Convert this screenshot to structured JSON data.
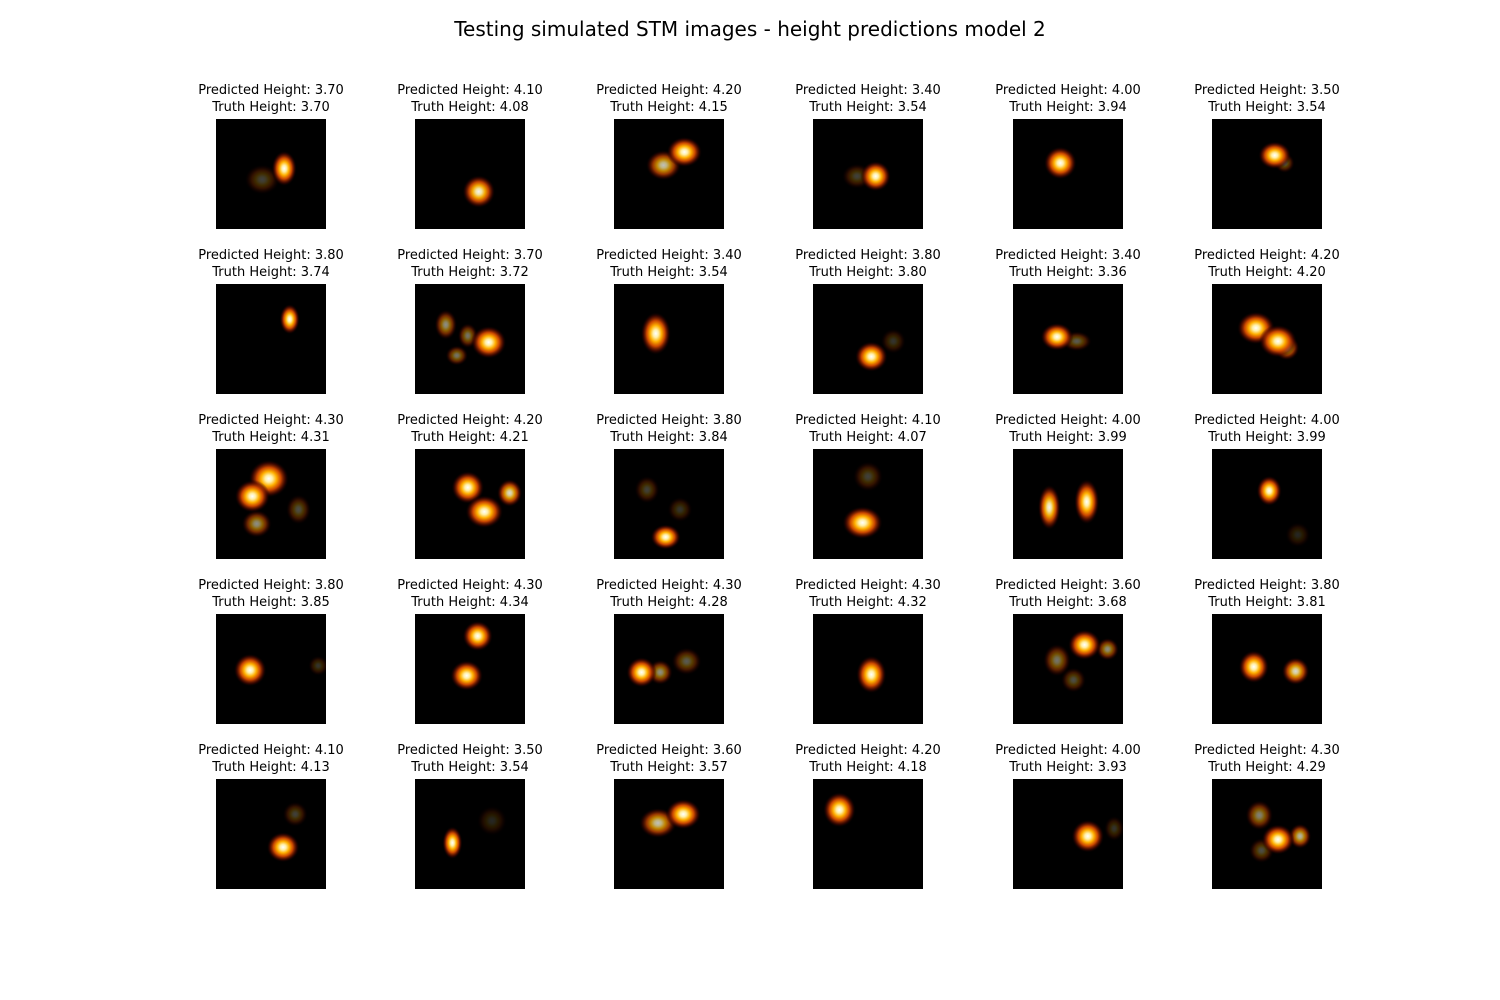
{
  "figure": {
    "title": "Testing simulated STM images - height predictions model 2",
    "pred_prefix": "Predicted Height: ",
    "truth_prefix": "Truth Height: ",
    "colormap": "afmhot",
    "background_color": "#000000"
  },
  "panels": [
    {
      "pred": "3.70",
      "truth": "3.70",
      "blobs": [
        [
          0.62,
          0.45,
          0.1,
          0.14,
          1.0
        ],
        [
          0.42,
          0.55,
          0.14,
          0.12,
          0.25
        ]
      ]
    },
    {
      "pred": "4.10",
      "truth": "4.08",
      "blobs": [
        [
          0.58,
          0.66,
          0.13,
          0.13,
          0.95
        ]
      ]
    },
    {
      "pred": "4.20",
      "truth": "4.15",
      "blobs": [
        [
          0.64,
          0.3,
          0.14,
          0.12,
          1.0
        ],
        [
          0.45,
          0.42,
          0.14,
          0.12,
          0.75
        ]
      ]
    },
    {
      "pred": "3.40",
      "truth": "3.54",
      "blobs": [
        [
          0.57,
          0.52,
          0.12,
          0.12,
          1.0
        ],
        [
          0.4,
          0.52,
          0.12,
          0.1,
          0.25
        ]
      ]
    },
    {
      "pred": "4.00",
      "truth": "3.94",
      "blobs": [
        [
          0.43,
          0.4,
          0.13,
          0.13,
          1.0
        ]
      ]
    },
    {
      "pred": "3.50",
      "truth": "3.54",
      "blobs": [
        [
          0.57,
          0.33,
          0.13,
          0.11,
          1.0
        ],
        [
          0.66,
          0.4,
          0.08,
          0.08,
          0.35
        ]
      ]
    },
    {
      "pred": "3.80",
      "truth": "3.74",
      "blobs": [
        [
          0.67,
          0.32,
          0.08,
          0.12,
          1.0
        ]
      ]
    },
    {
      "pred": "3.70",
      "truth": "3.72",
      "blobs": [
        [
          0.67,
          0.53,
          0.14,
          0.13,
          1.0
        ],
        [
          0.28,
          0.37,
          0.09,
          0.12,
          0.55
        ],
        [
          0.38,
          0.65,
          0.09,
          0.08,
          0.45
        ],
        [
          0.48,
          0.47,
          0.08,
          0.1,
          0.45
        ]
      ]
    },
    {
      "pred": "3.40",
      "truth": "3.54",
      "blobs": [
        [
          0.38,
          0.45,
          0.12,
          0.17,
          1.0
        ]
      ]
    },
    {
      "pred": "3.80",
      "truth": "3.80",
      "blobs": [
        [
          0.53,
          0.66,
          0.13,
          0.12,
          1.0
        ],
        [
          0.73,
          0.52,
          0.1,
          0.1,
          0.2
        ]
      ]
    },
    {
      "pred": "3.40",
      "truth": "3.36",
      "blobs": [
        [
          0.4,
          0.48,
          0.13,
          0.11,
          1.0
        ],
        [
          0.58,
          0.52,
          0.12,
          0.08,
          0.35
        ]
      ]
    },
    {
      "pred": "4.20",
      "truth": "4.20",
      "blobs": [
        [
          0.4,
          0.4,
          0.15,
          0.13,
          1.0
        ],
        [
          0.6,
          0.52,
          0.15,
          0.13,
          1.0
        ],
        [
          0.68,
          0.58,
          0.1,
          0.1,
          0.7
        ]
      ]
    },
    {
      "pred": "4.30",
      "truth": "4.31",
      "blobs": [
        [
          0.48,
          0.27,
          0.16,
          0.15,
          1.0
        ],
        [
          0.33,
          0.43,
          0.14,
          0.13,
          1.0
        ],
        [
          0.37,
          0.68,
          0.12,
          0.11,
          0.55
        ],
        [
          0.75,
          0.55,
          0.1,
          0.12,
          0.3
        ]
      ]
    },
    {
      "pred": "4.20",
      "truth": "4.21",
      "blobs": [
        [
          0.48,
          0.35,
          0.13,
          0.13,
          1.0
        ],
        [
          0.63,
          0.57,
          0.15,
          0.13,
          1.0
        ],
        [
          0.86,
          0.4,
          0.1,
          0.11,
          0.85
        ]
      ]
    },
    {
      "pred": "3.80",
      "truth": "3.84",
      "blobs": [
        [
          0.47,
          0.8,
          0.12,
          0.1,
          1.0
        ],
        [
          0.3,
          0.37,
          0.1,
          0.11,
          0.25
        ],
        [
          0.6,
          0.55,
          0.1,
          0.1,
          0.2
        ]
      ]
    },
    {
      "pred": "4.10",
      "truth": "4.07",
      "blobs": [
        [
          0.45,
          0.67,
          0.16,
          0.13,
          1.0
        ],
        [
          0.5,
          0.25,
          0.12,
          0.12,
          0.25
        ]
      ]
    },
    {
      "pred": "4.00",
      "truth": "3.99",
      "blobs": [
        [
          0.33,
          0.53,
          0.09,
          0.18,
          0.95
        ],
        [
          0.67,
          0.48,
          0.1,
          0.18,
          1.0
        ]
      ]
    },
    {
      "pred": "4.00",
      "truth": "3.99",
      "blobs": [
        [
          0.52,
          0.38,
          0.1,
          0.12,
          1.0
        ],
        [
          0.78,
          0.78,
          0.1,
          0.1,
          0.15
        ]
      ]
    },
    {
      "pred": "3.80",
      "truth": "3.85",
      "blobs": [
        [
          0.31,
          0.51,
          0.13,
          0.13,
          1.0
        ],
        [
          0.93,
          0.47,
          0.08,
          0.08,
          0.2
        ]
      ]
    },
    {
      "pred": "4.30",
      "truth": "4.34",
      "blobs": [
        [
          0.57,
          0.2,
          0.12,
          0.12,
          1.0
        ],
        [
          0.47,
          0.56,
          0.13,
          0.12,
          1.0
        ]
      ]
    },
    {
      "pred": "4.30",
      "truth": "4.28",
      "blobs": [
        [
          0.25,
          0.53,
          0.12,
          0.12,
          1.0
        ],
        [
          0.42,
          0.53,
          0.1,
          0.1,
          0.55
        ],
        [
          0.66,
          0.43,
          0.12,
          0.11,
          0.35
        ]
      ]
    },
    {
      "pred": "4.30",
      "truth": "4.32",
      "blobs": [
        [
          0.53,
          0.55,
          0.12,
          0.15,
          1.0
        ]
      ]
    },
    {
      "pred": "3.60",
      "truth": "3.68",
      "blobs": [
        [
          0.65,
          0.28,
          0.13,
          0.12,
          1.0
        ],
        [
          0.86,
          0.32,
          0.09,
          0.09,
          0.55
        ],
        [
          0.4,
          0.42,
          0.11,
          0.13,
          0.45
        ],
        [
          0.55,
          0.6,
          0.1,
          0.1,
          0.3
        ]
      ]
    },
    {
      "pred": "3.80",
      "truth": "3.81",
      "blobs": [
        [
          0.38,
          0.48,
          0.12,
          0.13,
          1.0
        ],
        [
          0.76,
          0.52,
          0.11,
          0.11,
          0.85
        ]
      ]
    },
    {
      "pred": "4.10",
      "truth": "4.13",
      "blobs": [
        [
          0.61,
          0.62,
          0.13,
          0.12,
          1.0
        ],
        [
          0.72,
          0.32,
          0.1,
          0.1,
          0.25
        ]
      ]
    },
    {
      "pred": "3.50",
      "truth": "3.54",
      "blobs": [
        [
          0.34,
          0.58,
          0.08,
          0.13,
          1.0
        ],
        [
          0.7,
          0.38,
          0.12,
          0.12,
          0.15
        ]
      ]
    },
    {
      "pred": "3.60",
      "truth": "3.57",
      "blobs": [
        [
          0.4,
          0.4,
          0.15,
          0.12,
          0.75
        ],
        [
          0.63,
          0.32,
          0.14,
          0.12,
          1.0
        ]
      ]
    },
    {
      "pred": "4.20",
      "truth": "4.18",
      "blobs": [
        [
          0.24,
          0.28,
          0.13,
          0.14,
          1.0
        ]
      ]
    },
    {
      "pred": "4.00",
      "truth": "3.93",
      "blobs": [
        [
          0.68,
          0.52,
          0.13,
          0.13,
          1.0
        ],
        [
          0.92,
          0.45,
          0.08,
          0.1,
          0.2
        ]
      ]
    },
    {
      "pred": "4.30",
      "truth": "4.29",
      "blobs": [
        [
          0.6,
          0.55,
          0.13,
          0.12,
          1.0
        ],
        [
          0.8,
          0.52,
          0.09,
          0.1,
          0.7
        ],
        [
          0.43,
          0.33,
          0.11,
          0.12,
          0.5
        ],
        [
          0.45,
          0.65,
          0.1,
          0.1,
          0.3
        ]
      ]
    }
  ]
}
